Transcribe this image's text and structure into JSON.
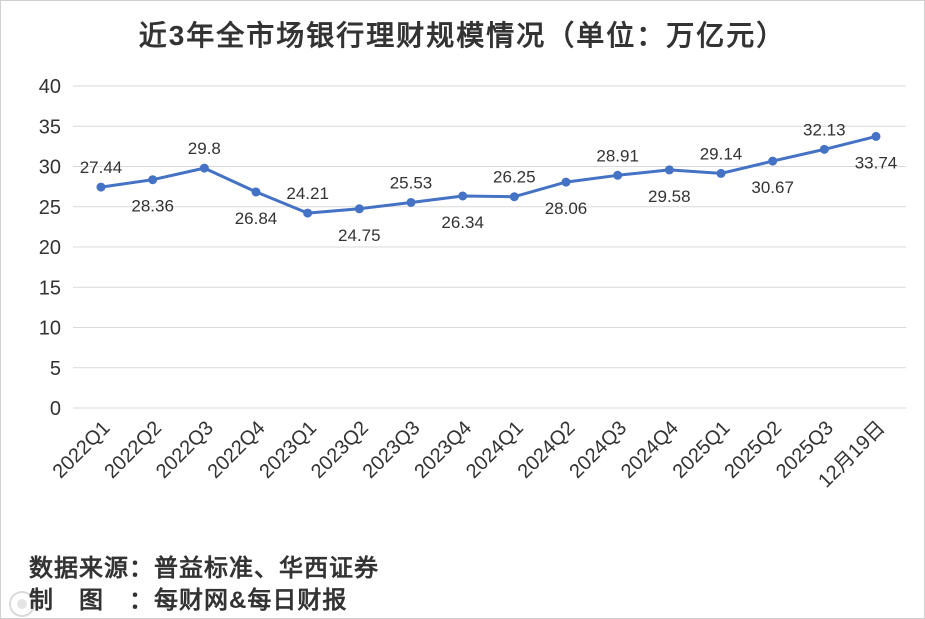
{
  "chart_data": {
    "type": "line",
    "title": "近3年全市场银行理财规模情况（单位：万亿元）",
    "categories": [
      "2022Q1",
      "2022Q2",
      "2022Q3",
      "2022Q4",
      "2023Q1",
      "2023Q2",
      "2023Q3",
      "2023Q4",
      "2024Q1",
      "2024Q2",
      "2024Q3",
      "2024Q4",
      "2025Q1",
      "2025Q2",
      "2025Q3",
      "12月19日"
    ],
    "series": [
      {
        "values": [
          27.44,
          28.36,
          29.8,
          26.84,
          24.21,
          24.75,
          25.53,
          26.34,
          26.25,
          28.06,
          28.91,
          29.58,
          29.14,
          30.67,
          32.13,
          33.74
        ]
      }
    ],
    "ylim": [
      0,
      40
    ],
    "yticks": [
      0,
      5,
      10,
      15,
      20,
      25,
      30,
      35,
      40
    ],
    "grid": true,
    "legend": "none",
    "line_color": "#4472C4"
  },
  "footer": {
    "source_label": "数据来源：",
    "source_value": "普益标准、华西证券",
    "credit_label": "制图：",
    "credit_value": "每财网&每日财报"
  },
  "icons": {
    "watermark": "watermark-logo-icon"
  }
}
